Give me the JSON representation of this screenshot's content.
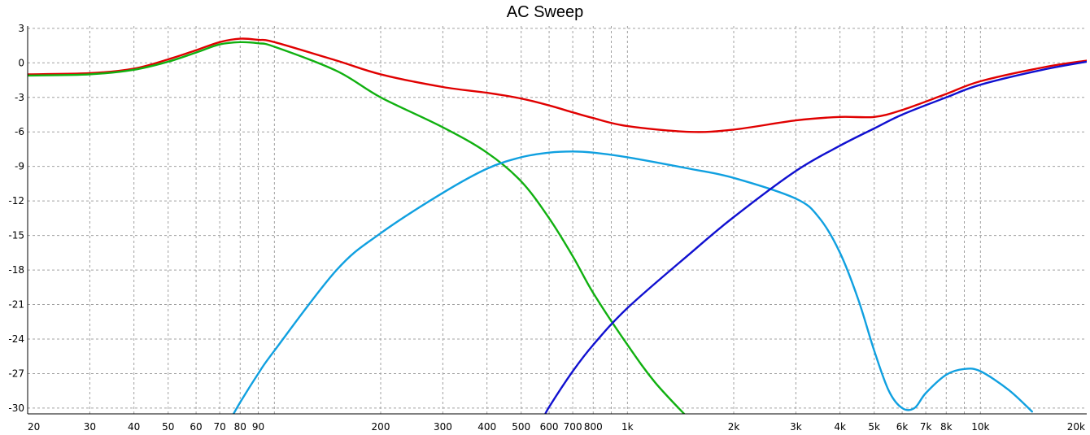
{
  "chart_data": {
    "type": "line",
    "title": "AC Sweep",
    "xlabel": "",
    "ylabel": "",
    "x_scale": "log",
    "xlim": [
      20,
      20000
    ],
    "ylim": [
      -30.5,
      3.2
    ],
    "grid": true,
    "legend": "none",
    "x_ticks": [
      {
        "v": 20,
        "label": "20"
      },
      {
        "v": 30,
        "label": "30"
      },
      {
        "v": 40,
        "label": "40"
      },
      {
        "v": 50,
        "label": "50"
      },
      {
        "v": 60,
        "label": "60"
      },
      {
        "v": 70,
        "label": "70"
      },
      {
        "v": 80,
        "label": "80"
      },
      {
        "v": 90,
        "label": "90"
      },
      {
        "v": 200,
        "label": "200"
      },
      {
        "v": 300,
        "label": "300"
      },
      {
        "v": 400,
        "label": "400"
      },
      {
        "v": 500,
        "label": "500"
      },
      {
        "v": 600,
        "label": "600"
      },
      {
        "v": 700,
        "label": "700"
      },
      {
        "v": 800,
        "label": "800"
      },
      {
        "v": 1000,
        "label": "1k"
      },
      {
        "v": 2000,
        "label": "2k"
      },
      {
        "v": 3000,
        "label": "3k"
      },
      {
        "v": 4000,
        "label": "4k"
      },
      {
        "v": 5000,
        "label": "5k"
      },
      {
        "v": 6000,
        "label": "6k"
      },
      {
        "v": 7000,
        "label": "7k"
      },
      {
        "v": 8000,
        "label": "8k"
      },
      {
        "v": 10000,
        "label": "10k"
      },
      {
        "v": 20000,
        "label": "20k"
      }
    ],
    "x_minor": [
      100,
      900,
      9000
    ],
    "y_ticks": [
      3,
      0,
      -3,
      -6,
      -9,
      -12,
      -15,
      -18,
      -21,
      -24,
      -27,
      -30
    ],
    "series": [
      {
        "color": "#e00000",
        "points": [
          [
            20,
            -1.0
          ],
          [
            30,
            -0.9
          ],
          [
            40,
            -0.5
          ],
          [
            50,
            0.3
          ],
          [
            60,
            1.1
          ],
          [
            70,
            1.8
          ],
          [
            80,
            2.1
          ],
          [
            90,
            2.0
          ],
          [
            100,
            1.8
          ],
          [
            150,
            0.2
          ],
          [
            200,
            -1.0
          ],
          [
            300,
            -2.1
          ],
          [
            400,
            -2.6
          ],
          [
            500,
            -3.1
          ],
          [
            600,
            -3.7
          ],
          [
            700,
            -4.3
          ],
          [
            800,
            -4.8
          ],
          [
            1000,
            -5.5
          ],
          [
            1500,
            -6.0
          ],
          [
            2000,
            -5.8
          ],
          [
            3000,
            -5.0
          ],
          [
            4000,
            -4.7
          ],
          [
            5000,
            -4.7
          ],
          [
            6000,
            -4.1
          ],
          [
            8000,
            -2.7
          ],
          [
            10000,
            -1.6
          ],
          [
            15000,
            -0.4
          ],
          [
            20000,
            0.2
          ]
        ]
      },
      {
        "color": "#10b010",
        "points": [
          [
            20,
            -1.1
          ],
          [
            30,
            -1.0
          ],
          [
            40,
            -0.6
          ],
          [
            50,
            0.1
          ],
          [
            60,
            0.9
          ],
          [
            70,
            1.6
          ],
          [
            80,
            1.8
          ],
          [
            90,
            1.7
          ],
          [
            100,
            1.4
          ],
          [
            150,
            -0.7
          ],
          [
            200,
            -3.0
          ],
          [
            300,
            -5.6
          ],
          [
            400,
            -7.8
          ],
          [
            500,
            -10.3
          ],
          [
            600,
            -13.5
          ],
          [
            700,
            -16.8
          ],
          [
            800,
            -20.0
          ],
          [
            1000,
            -24.5
          ],
          [
            1200,
            -27.8
          ],
          [
            1500,
            -31.0
          ]
        ]
      },
      {
        "color": "#10a0e0",
        "points": [
          [
            75,
            -31.0
          ],
          [
            80,
            -29.5
          ],
          [
            90,
            -27.0
          ],
          [
            100,
            -25.0
          ],
          [
            150,
            -18.0
          ],
          [
            200,
            -14.8
          ],
          [
            300,
            -11.3
          ],
          [
            400,
            -9.2
          ],
          [
            500,
            -8.2
          ],
          [
            600,
            -7.8
          ],
          [
            700,
            -7.7
          ],
          [
            800,
            -7.8
          ],
          [
            1000,
            -8.2
          ],
          [
            1500,
            -9.2
          ],
          [
            2000,
            -10.0
          ],
          [
            3000,
            -11.8
          ],
          [
            3500,
            -13.5
          ],
          [
            4000,
            -16.5
          ],
          [
            4500,
            -20.5
          ],
          [
            5000,
            -25.0
          ],
          [
            5500,
            -28.5
          ],
          [
            6000,
            -30.0
          ],
          [
            6500,
            -30.0
          ],
          [
            7000,
            -28.7
          ],
          [
            8000,
            -27.1
          ],
          [
            9000,
            -26.6
          ],
          [
            10000,
            -26.8
          ],
          [
            12000,
            -28.4
          ],
          [
            14000,
            -30.3
          ]
        ]
      },
      {
        "color": "#1010d0",
        "points": [
          [
            580,
            -30.8
          ],
          [
            600,
            -29.9
          ],
          [
            700,
            -26.8
          ],
          [
            800,
            -24.5
          ],
          [
            1000,
            -21.3
          ],
          [
            1500,
            -16.6
          ],
          [
            2000,
            -13.4
          ],
          [
            3000,
            -9.4
          ],
          [
            4000,
            -7.2
          ],
          [
            5000,
            -5.7
          ],
          [
            6000,
            -4.5
          ],
          [
            8000,
            -3.0
          ],
          [
            10000,
            -1.9
          ],
          [
            15000,
            -0.6
          ],
          [
            20000,
            0.1
          ]
        ]
      }
    ]
  }
}
